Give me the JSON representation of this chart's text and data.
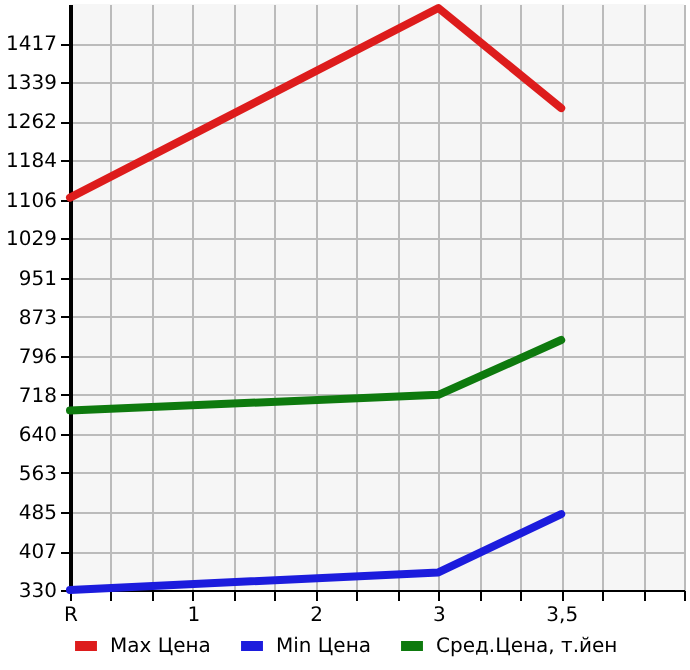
{
  "chart_data": {
    "type": "line",
    "categories": [
      "R",
      "1",
      "2",
      "3",
      "3,5"
    ],
    "series": [
      {
        "name": "Max Цена",
        "color": "#dd1c1c",
        "values": [
          1110,
          null,
          null,
          1487,
          1288
        ]
      },
      {
        "name": "Min Цена",
        "color": "#1c1cdd",
        "values": [
          330,
          null,
          null,
          365,
          481
        ]
      },
      {
        "name": "Сред.Цена, т.йен",
        "color": "#0e7a0e",
        "values": [
          687,
          null,
          null,
          718,
          827
        ]
      }
    ],
    "ylim": [
      330,
      1495
    ],
    "yticks": [
      330,
      407,
      485,
      563,
      640,
      718,
      796,
      873,
      951,
      1029,
      1106,
      1184,
      1262,
      1339,
      1417
    ],
    "grid": true,
    "legend": "bottom",
    "marker": "none",
    "line_style": "solid"
  }
}
